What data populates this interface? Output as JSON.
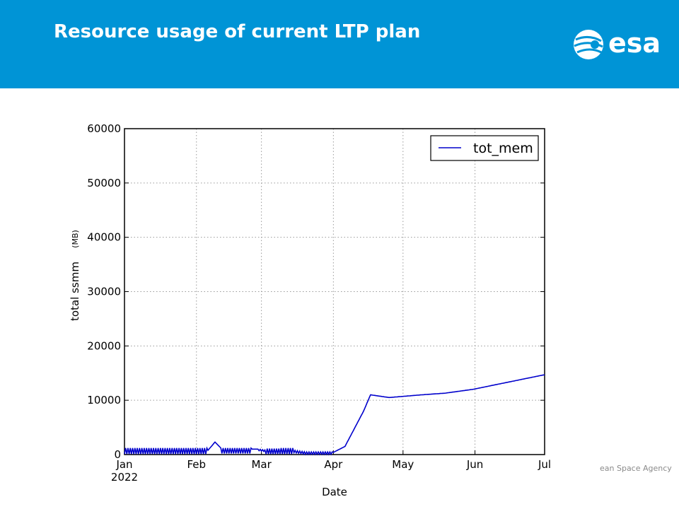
{
  "slide": {
    "title": "Resource usage of current LTP plan",
    "logo_text": "esa",
    "footer": "ean Space Agency"
  },
  "colors": {
    "header": "#0094d6",
    "series": "#0000cc"
  },
  "chart_data": {
    "type": "line",
    "title": "",
    "xlabel": "Date",
    "ylabel": "total ssmm",
    "ylabel_unit": "(MB)",
    "x_range": [
      "2022-01-01",
      "2022-07-01"
    ],
    "xlim": [
      0,
      181
    ],
    "ylim": [
      0,
      60000
    ],
    "x_ticks": [
      {
        "label": "Jan",
        "value": 0
      },
      {
        "label": "Feb",
        "value": 31
      },
      {
        "label": "Mar",
        "value": 59
      },
      {
        "label": "Apr",
        "value": 90
      },
      {
        "label": "May",
        "value": 120
      },
      {
        "label": "Jun",
        "value": 151
      },
      {
        "label": "Jul",
        "value": 181
      }
    ],
    "x_year_label": "2022",
    "y_ticks": [
      0,
      10000,
      20000,
      30000,
      40000,
      50000,
      60000
    ],
    "y_tick_labels": [
      "0",
      "10000",
      "20000",
      "30000",
      "40000",
      "50000",
      "60000"
    ],
    "grid": true,
    "legend": {
      "position": "top-right",
      "entries": [
        "tot_mem"
      ]
    },
    "series": [
      {
        "name": "tot_mem",
        "dates": [
          "2022-01-01",
          "2022-01-31",
          "2022-02-06",
          "2022-02-09",
          "2022-02-12",
          "2022-02-28",
          "2022-03-08",
          "2022-03-15",
          "2022-03-25",
          "2022-04-01",
          "2022-04-06",
          "2022-04-14",
          "2022-04-18",
          "2022-04-26",
          "2022-05-10",
          "2022-05-20",
          "2022-06-01",
          "2022-07-01"
        ],
        "x": [
          0,
          30,
          36,
          39,
          42,
          58,
          66,
          73,
          83,
          90,
          95,
          103,
          106,
          114,
          128,
          138,
          150,
          181
        ],
        "y": [
          1000,
          1000,
          800,
          2300,
          1000,
          1000,
          500,
          800,
          200,
          400,
          1500,
          8000,
          11000,
          10500,
          11000,
          11300,
          12000,
          14700
        ],
        "oscillation": [
          {
            "x_start": 0,
            "x_end": 36,
            "low": 100,
            "high": 1200,
            "period": 1
          },
          {
            "x_start": 42,
            "x_end": 55,
            "low": 200,
            "high": 1200,
            "period": 1
          },
          {
            "x_start": 58,
            "x_end": 61,
            "low": 0,
            "high": 300,
            "period": 1
          },
          {
            "x_start": 61,
            "x_end": 67,
            "low": 100,
            "high": 1100,
            "period": 1
          },
          {
            "x_start": 67,
            "x_end": 73,
            "low": 100,
            "high": 1200,
            "period": 1
          },
          {
            "x_start": 73,
            "x_end": 90,
            "low": 50,
            "high": 500,
            "period": 1
          }
        ]
      }
    ]
  }
}
